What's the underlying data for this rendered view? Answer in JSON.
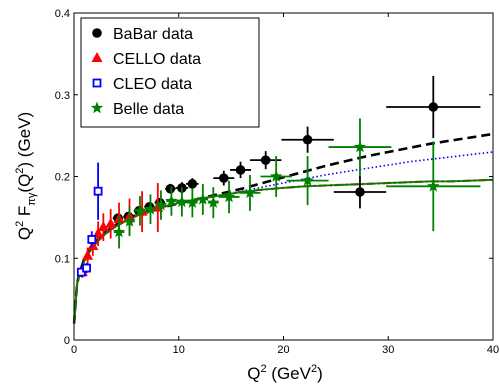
{
  "chart_data": {
    "type": "scatter",
    "title": "",
    "xlabel": {
      "base": "Q",
      "sup": "2",
      "unit_open": " (GeV",
      "unit_sup": "2",
      "unit_close": ")"
    },
    "ylabel": {
      "base": "Q",
      "sup1": "2",
      "mid": " F",
      "sub": "πγ",
      "arg_open": "(Q",
      "sup2": "2",
      "rest": ") (GeV)"
    },
    "xlim": [
      0,
      40
    ],
    "ylim": [
      0,
      0.4
    ],
    "xticks": [
      0,
      10,
      20,
      30,
      40
    ],
    "yticks": [
      0,
      0.1,
      0.2,
      0.3,
      0.4
    ],
    "xtick_labels": [
      "0",
      "10",
      "20",
      "30",
      "40"
    ],
    "ytick_labels": [
      "0",
      "0.1",
      "0.2",
      "0.3",
      "0.4"
    ],
    "grid": false,
    "legend_position": "top-left",
    "series": [
      {
        "name": "BaBar data",
        "color": "#000000",
        "marker": "circle",
        "points": [
          {
            "x": 4.2,
            "y": 0.149,
            "xerr": 0.5,
            "yerr": 0.005
          },
          {
            "x": 5.2,
            "y": 0.151,
            "xerr": 0.5,
            "yerr": 0.005
          },
          {
            "x": 6.2,
            "y": 0.158,
            "xerr": 0.5,
            "yerr": 0.005
          },
          {
            "x": 7.2,
            "y": 0.163,
            "xerr": 0.5,
            "yerr": 0.005
          },
          {
            "x": 8.2,
            "y": 0.168,
            "xerr": 0.5,
            "yerr": 0.005
          },
          {
            "x": 9.2,
            "y": 0.185,
            "xerr": 0.5,
            "yerr": 0.006
          },
          {
            "x": 10.3,
            "y": 0.186,
            "xerr": 0.6,
            "yerr": 0.007
          },
          {
            "x": 11.3,
            "y": 0.191,
            "xerr": 0.6,
            "yerr": 0.007
          },
          {
            "x": 14.3,
            "y": 0.198,
            "xerr": 1.0,
            "yerr": 0.009
          },
          {
            "x": 15.9,
            "y": 0.208,
            "xerr": 1.0,
            "yerr": 0.01
          },
          {
            "x": 18.3,
            "y": 0.22,
            "xerr": 1.5,
            "yerr": 0.011
          },
          {
            "x": 22.3,
            "y": 0.245,
            "xerr": 2.5,
            "yerr": 0.016
          },
          {
            "x": 27.3,
            "y": 0.181,
            "xerr": 2.5,
            "yerr": 0.02
          },
          {
            "x": 34.3,
            "y": 0.285,
            "xerr": 4.5,
            "yerr": 0.038
          }
        ]
      },
      {
        "name": "CELLO data",
        "color": "#ff0000",
        "marker": "triangle",
        "points": [
          {
            "x": 0.8,
            "y": 0.083,
            "xerr": 0,
            "yerr": 0.007
          },
          {
            "x": 1.3,
            "y": 0.103,
            "xerr": 0,
            "yerr": 0.01
          },
          {
            "x": 1.8,
            "y": 0.115,
            "xerr": 0,
            "yerr": 0.012
          },
          {
            "x": 2.3,
            "y": 0.13,
            "xerr": 0,
            "yerr": 0.015
          },
          {
            "x": 2.8,
            "y": 0.138,
            "xerr": 0,
            "yerr": 0.017
          },
          {
            "x": 3.5,
            "y": 0.142,
            "xerr": 0,
            "yerr": 0.018
          },
          {
            "x": 4.3,
            "y": 0.148,
            "xerr": 0,
            "yerr": 0.02
          },
          {
            "x": 5.3,
            "y": 0.151,
            "xerr": 0,
            "yerr": 0.022
          },
          {
            "x": 6.5,
            "y": 0.157,
            "xerr": 0,
            "yerr": 0.025
          },
          {
            "x": 8.0,
            "y": 0.162,
            "xerr": 0,
            "yerr": 0.03
          }
        ]
      },
      {
        "name": "CLEO data",
        "color": "#0000ff",
        "marker": "square",
        "points": [
          {
            "x": 0.7,
            "y": 0.083,
            "xerr": 0.3,
            "yerr": 0.006
          },
          {
            "x": 1.2,
            "y": 0.088,
            "xerr": 0.3,
            "yerr": 0.006
          },
          {
            "x": 1.7,
            "y": 0.123,
            "xerr": 0.3,
            "yerr": 0.01
          },
          {
            "x": 2.3,
            "y": 0.182,
            "xerr": 0.3,
            "yerr": 0.035
          }
        ]
      },
      {
        "name": "Belle data",
        "color": "#008000",
        "marker": "star",
        "points": [
          {
            "x": 4.3,
            "y": 0.132,
            "xerr": 0.5,
            "yerr": 0.02
          },
          {
            "x": 5.3,
            "y": 0.145,
            "xerr": 0.5,
            "yerr": 0.018
          },
          {
            "x": 6.3,
            "y": 0.158,
            "xerr": 0.5,
            "yerr": 0.018
          },
          {
            "x": 7.3,
            "y": 0.16,
            "xerr": 0.5,
            "yerr": 0.018
          },
          {
            "x": 8.3,
            "y": 0.165,
            "xerr": 0.5,
            "yerr": 0.018
          },
          {
            "x": 9.3,
            "y": 0.17,
            "xerr": 0.5,
            "yerr": 0.018
          },
          {
            "x": 10.3,
            "y": 0.169,
            "xerr": 0.5,
            "yerr": 0.018
          },
          {
            "x": 11.3,
            "y": 0.168,
            "xerr": 0.5,
            "yerr": 0.018
          },
          {
            "x": 12.3,
            "y": 0.172,
            "xerr": 0.5,
            "yerr": 0.019
          },
          {
            "x": 13.3,
            "y": 0.168,
            "xerr": 0.5,
            "yerr": 0.019
          },
          {
            "x": 14.8,
            "y": 0.175,
            "xerr": 1.0,
            "yerr": 0.02
          },
          {
            "x": 16.8,
            "y": 0.18,
            "xerr": 1.0,
            "yerr": 0.022
          },
          {
            "x": 19.3,
            "y": 0.2,
            "xerr": 1.5,
            "yerr": 0.025
          },
          {
            "x": 22.3,
            "y": 0.195,
            "xerr": 2.0,
            "yerr": 0.03
          },
          {
            "x": 27.3,
            "y": 0.236,
            "xerr": 3.0,
            "yerr": 0.035
          },
          {
            "x": 34.3,
            "y": 0.188,
            "xerr": 4.5,
            "yerr": 0.055
          }
        ]
      }
    ],
    "curves": [
      {
        "style": "dashed",
        "color": "#000000",
        "points": [
          [
            0.01,
            0.02
          ],
          [
            0.3,
            0.07
          ],
          [
            0.6,
            0.085
          ],
          [
            1,
            0.1
          ],
          [
            1.5,
            0.111
          ],
          [
            2,
            0.12
          ],
          [
            3,
            0.132
          ],
          [
            4,
            0.141
          ],
          [
            5,
            0.148
          ],
          [
            6,
            0.153
          ],
          [
            8,
            0.161
          ],
          [
            10,
            0.167
          ],
          [
            12,
            0.173
          ],
          [
            14,
            0.179
          ],
          [
            16,
            0.185
          ],
          [
            18,
            0.192
          ],
          [
            20,
            0.199
          ],
          [
            22,
            0.206
          ],
          [
            24,
            0.213
          ],
          [
            26,
            0.219
          ],
          [
            28,
            0.225
          ],
          [
            30,
            0.23
          ],
          [
            32,
            0.235
          ],
          [
            34,
            0.24
          ],
          [
            36,
            0.244
          ],
          [
            38,
            0.248
          ],
          [
            40,
            0.252
          ]
        ]
      },
      {
        "style": "dotted",
        "color": "#0000ff",
        "points": [
          [
            0.01,
            0.02
          ],
          [
            0.3,
            0.07
          ],
          [
            0.6,
            0.085
          ],
          [
            1,
            0.1
          ],
          [
            1.5,
            0.111
          ],
          [
            2,
            0.12
          ],
          [
            3,
            0.132
          ],
          [
            4,
            0.141
          ],
          [
            5,
            0.148
          ],
          [
            6,
            0.153
          ],
          [
            8,
            0.161
          ],
          [
            10,
            0.167
          ],
          [
            12,
            0.172
          ],
          [
            14,
            0.177
          ],
          [
            16,
            0.182
          ],
          [
            18,
            0.187
          ],
          [
            20,
            0.192
          ],
          [
            22,
            0.197
          ],
          [
            24,
            0.202
          ],
          [
            26,
            0.206
          ],
          [
            28,
            0.21
          ],
          [
            30,
            0.214
          ],
          [
            32,
            0.218
          ],
          [
            34,
            0.221
          ],
          [
            36,
            0.224
          ],
          [
            38,
            0.227
          ],
          [
            40,
            0.23
          ]
        ]
      },
      {
        "style": "dashdot",
        "color": "#ff0000",
        "points": [
          [
            0.01,
            0.02
          ],
          [
            0.3,
            0.068
          ],
          [
            0.6,
            0.082
          ],
          [
            1,
            0.097
          ],
          [
            1.5,
            0.108
          ],
          [
            2,
            0.117
          ],
          [
            3,
            0.13
          ],
          [
            4,
            0.139
          ],
          [
            5,
            0.146
          ],
          [
            6,
            0.152
          ],
          [
            8,
            0.161
          ],
          [
            10,
            0.168
          ],
          [
            12,
            0.173
          ],
          [
            14,
            0.177
          ],
          [
            16,
            0.181
          ],
          [
            18,
            0.184
          ],
          [
            20,
            0.186
          ],
          [
            22,
            0.188
          ],
          [
            24,
            0.189
          ],
          [
            26,
            0.19
          ],
          [
            28,
            0.191
          ],
          [
            30,
            0.192
          ],
          [
            32,
            0.193
          ],
          [
            34,
            0.194
          ],
          [
            36,
            0.194
          ],
          [
            38,
            0.195
          ],
          [
            40,
            0.196
          ]
        ]
      },
      {
        "style": "solid",
        "color": "#008000",
        "points": [
          [
            0.01,
            0.02
          ],
          [
            0.3,
            0.068
          ],
          [
            0.6,
            0.082
          ],
          [
            1,
            0.097
          ],
          [
            1.5,
            0.108
          ],
          [
            2,
            0.117
          ],
          [
            3,
            0.13
          ],
          [
            4,
            0.139
          ],
          [
            5,
            0.146
          ],
          [
            6,
            0.152
          ],
          [
            8,
            0.161
          ],
          [
            10,
            0.168
          ],
          [
            12,
            0.173
          ],
          [
            14,
            0.177
          ],
          [
            16,
            0.181
          ],
          [
            18,
            0.184
          ],
          [
            20,
            0.186
          ],
          [
            22,
            0.188
          ],
          [
            24,
            0.189
          ],
          [
            26,
            0.19
          ],
          [
            28,
            0.191
          ],
          [
            30,
            0.192
          ],
          [
            32,
            0.193
          ],
          [
            34,
            0.194
          ],
          [
            36,
            0.194
          ],
          [
            38,
            0.195
          ],
          [
            40,
            0.196
          ]
        ]
      }
    ]
  }
}
